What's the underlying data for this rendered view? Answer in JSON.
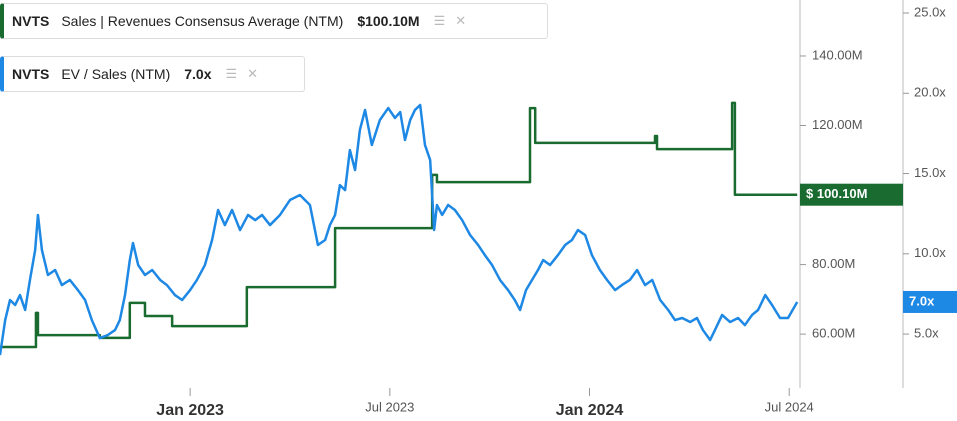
{
  "chart_data": {
    "type": "line",
    "xlim": [
      2022.524,
      2024.527
    ],
    "xticks": [
      {
        "value": 2023,
        "label": "Jan 2023"
      },
      {
        "value": 2023.5,
        "label": "Jul 2023"
      },
      {
        "value": 2024,
        "label": "Jan 2024"
      },
      {
        "value": 2024.5,
        "label": "Jul 2024"
      }
    ],
    "ylim": [
      44.5,
      156.1
    ],
    "yticks": [
      {
        "value": 60,
        "label": "60.00M"
      },
      {
        "value": 80,
        "label": "80.00M"
      },
      {
        "value": 120,
        "label": "120.00M"
      },
      {
        "value": 140,
        "label": "140.00M"
      }
    ],
    "y2lim": [
      1.64,
      25.81
    ],
    "y2ticks": [
      {
        "value": 5,
        "label": "5.0x"
      },
      {
        "value": 10,
        "label": "10.0x"
      },
      {
        "value": 15,
        "label": "15.0x"
      },
      {
        "value": 20,
        "label": "20.0x"
      },
      {
        "value": 25,
        "label": "25.0x"
      }
    ],
    "series": [
      {
        "ticker": "NVTS",
        "name": "Sales | Revenues Consensus Average (NTM)",
        "legend_value": "$100.10M",
        "badge_label": "$ 100.10M",
        "color": "#1a6b2f",
        "axis": "y",
        "step": true,
        "x": [
          2022.524,
          2022.614,
          2022.619,
          2022.774,
          2022.849,
          2022.887,
          2022.955,
          2023.142,
          2023.363,
          2023.606,
          2023.618,
          2023.851,
          2023.864,
          2024.164,
          2024.169,
          2024.357,
          2024.364,
          2024.52
        ],
        "values": [
          56.3,
          66.1,
          59.7,
          58.9,
          69.0,
          65.2,
          62.3,
          73.5,
          90.5,
          105.8,
          103.7,
          125.0,
          115.0,
          117.0,
          113.2,
          126.5,
          100.1,
          100.1
        ]
      },
      {
        "ticker": "NVTS",
        "name": "EV / Sales (NTM)",
        "legend_value": "7.0x",
        "badge_label": "7.0x",
        "color": "#1e88e5",
        "axis": "y2",
        "step": false,
        "x": [
          2022.524,
          2022.537,
          2022.549,
          2022.562,
          2022.574,
          2022.587,
          2022.599,
          2022.612,
          2022.619,
          2022.629,
          2022.644,
          2022.662,
          2022.679,
          2022.699,
          2022.719,
          2022.737,
          2022.754,
          2022.774,
          2022.794,
          2022.812,
          2022.824,
          2022.837,
          2022.849,
          2022.857,
          2022.87,
          2022.887,
          2022.905,
          2022.925,
          2022.942,
          2022.962,
          2022.98,
          2023.0,
          2023.017,
          2023.037,
          2023.055,
          2023.07,
          2023.087,
          2023.105,
          2023.125,
          2023.145,
          2023.163,
          2023.18,
          2023.2,
          2023.225,
          2023.25,
          2023.275,
          2023.3,
          2023.32,
          2023.338,
          2023.35,
          2023.363,
          2023.375,
          2023.388,
          2023.4,
          2023.413,
          2023.425,
          2023.438,
          2023.455,
          2023.475,
          2023.496,
          2023.513,
          2023.526,
          2023.538,
          2023.551,
          2023.563,
          2023.576,
          2023.588,
          2023.601,
          2023.611,
          2023.618,
          2023.631,
          2023.646,
          2023.663,
          2023.681,
          2023.701,
          2023.721,
          2023.738,
          2023.756,
          2023.776,
          2023.796,
          2023.813,
          2023.826,
          2023.841,
          2023.856,
          2023.871,
          2023.884,
          2023.901,
          2023.921,
          2023.939,
          2023.956,
          2023.971,
          2023.989,
          2024.006,
          2024.026,
          2024.044,
          2024.064,
          2024.081,
          2024.101,
          2024.119,
          2024.139,
          2024.157,
          2024.177,
          2024.197,
          2024.214,
          2024.232,
          2024.252,
          2024.269,
          2024.284,
          2024.302,
          2024.314,
          2024.332,
          2024.352,
          2024.372,
          2024.389,
          2024.407,
          2024.422,
          2024.44,
          2024.457,
          2024.477,
          2024.497,
          2024.52
        ],
        "values": [
          3.69,
          5.87,
          7.12,
          6.81,
          7.43,
          6.5,
          8.37,
          10.23,
          12.42,
          10.23,
          8.68,
          8.99,
          8.05,
          8.37,
          7.74,
          7.12,
          5.87,
          4.75,
          4.94,
          5.25,
          5.87,
          7.43,
          9.61,
          10.67,
          9.3,
          8.68,
          8.99,
          8.37,
          8.05,
          7.43,
          7.12,
          7.74,
          8.37,
          9.3,
          10.86,
          12.73,
          11.79,
          12.73,
          11.48,
          12.42,
          12.1,
          12.42,
          11.79,
          12.42,
          13.35,
          13.66,
          13.04,
          10.55,
          10.86,
          11.79,
          12.42,
          14.28,
          13.97,
          16.46,
          15.22,
          17.71,
          18.96,
          16.78,
          18.33,
          19.08,
          18.46,
          18.83,
          17.09,
          18.33,
          18.96,
          19.27,
          16.78,
          15.84,
          11.48,
          13.04,
          12.42,
          13.04,
          12.73,
          12.1,
          11.17,
          10.55,
          9.92,
          9.3,
          8.37,
          7.74,
          7.12,
          6.5,
          7.74,
          8.37,
          8.99,
          9.61,
          9.3,
          9.92,
          10.55,
          10.86,
          11.48,
          11.17,
          9.92,
          8.99,
          8.37,
          7.74,
          8.05,
          8.37,
          8.99,
          8.05,
          8.37,
          7.12,
          6.5,
          5.87,
          6.0,
          5.75,
          6.0,
          5.25,
          4.63,
          5.25,
          6.19,
          5.75,
          6.0,
          5.56,
          6.19,
          6.5,
          7.43,
          6.81,
          6.0,
          6.0,
          7.0
        ]
      }
    ]
  }
}
